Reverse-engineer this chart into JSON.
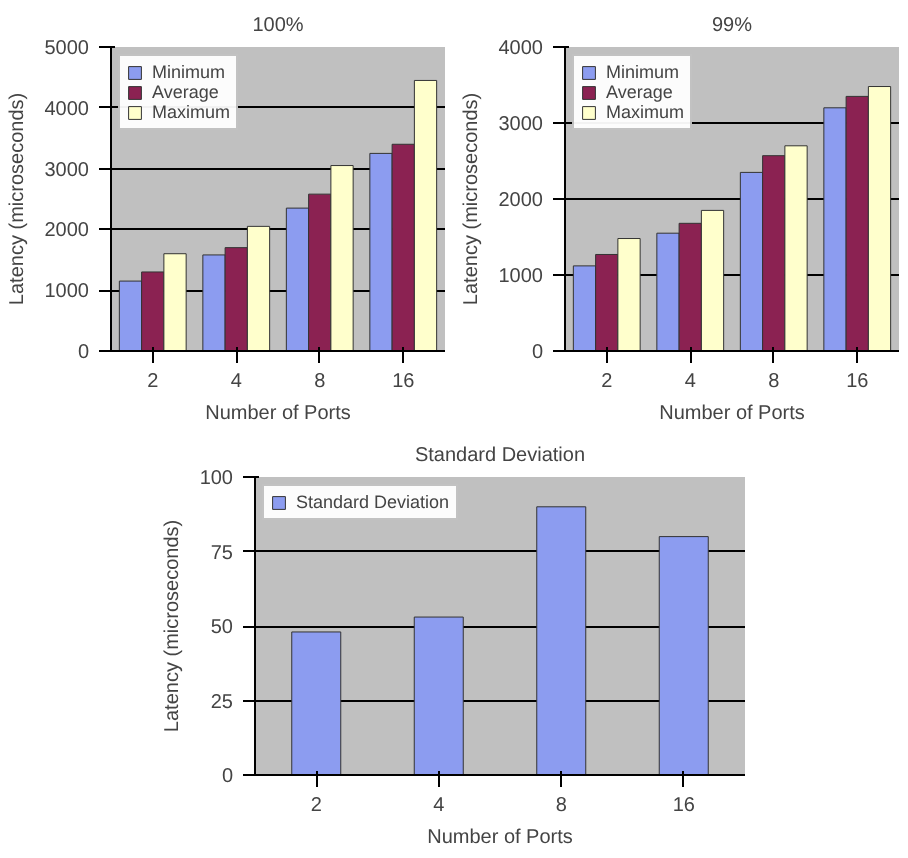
{
  "chart_data": [
    {
      "type": "bar",
      "title": "100%",
      "xlabel": "Number of Ports",
      "ylabel": "Latency (microseconds)",
      "categories": [
        "2",
        "4",
        "8",
        "16"
      ],
      "ylim": [
        0,
        5000
      ],
      "yticks": [
        0,
        1000,
        2000,
        3000,
        4000,
        5000
      ],
      "grid": "y",
      "legend": "top left",
      "series": [
        {
          "name": "Minimum",
          "color": "#8c9cf0",
          "values": [
            1150,
            1580,
            2350,
            3250
          ]
        },
        {
          "name": "Average",
          "color": "#8b2252",
          "values": [
            1300,
            1700,
            2580,
            3400
          ]
        },
        {
          "name": "Maximum",
          "color": "#ffffcc",
          "values": [
            1600,
            2050,
            3050,
            4450
          ]
        }
      ]
    },
    {
      "type": "bar",
      "title": "99%",
      "xlabel": "Number of Ports",
      "ylabel": "Latency (microseconds)",
      "categories": [
        "2",
        "4",
        "8",
        "16"
      ],
      "ylim": [
        0,
        4000
      ],
      "yticks": [
        0,
        1000,
        2000,
        3000,
        4000
      ],
      "grid": "y",
      "legend": "top left",
      "series": [
        {
          "name": "Minimum",
          "color": "#8c9cf0",
          "values": [
            1120,
            1550,
            2350,
            3200
          ]
        },
        {
          "name": "Average",
          "color": "#8b2252",
          "values": [
            1270,
            1680,
            2570,
            3350
          ]
        },
        {
          "name": "Maximum",
          "color": "#ffffcc",
          "values": [
            1480,
            1850,
            2700,
            3480
          ]
        }
      ]
    },
    {
      "type": "bar",
      "title": "Standard Deviation",
      "xlabel": "Number of Ports",
      "ylabel": "Latency (microseconds)",
      "categories": [
        "2",
        "4",
        "8",
        "16"
      ],
      "ylim": [
        0,
        100
      ],
      "yticks": [
        0,
        25,
        50,
        75,
        100
      ],
      "grid": "y",
      "legend": "top left",
      "series": [
        {
          "name": "Standard Deviation",
          "color": "#8c9cf0",
          "values": [
            48,
            53,
            90,
            80
          ]
        }
      ]
    }
  ]
}
